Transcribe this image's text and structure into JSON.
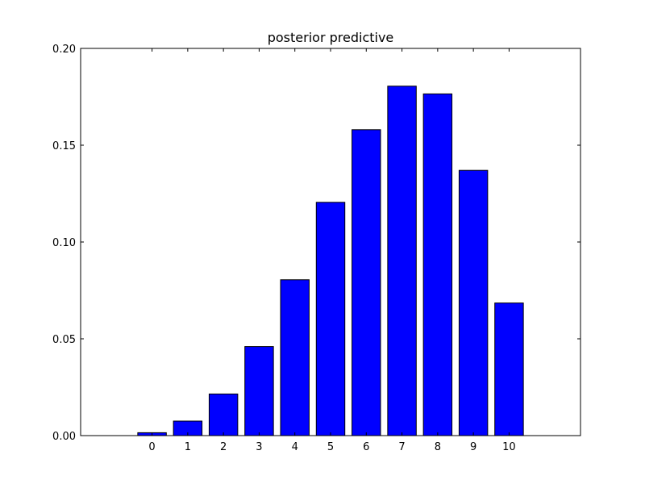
{
  "chart_data": {
    "type": "bar",
    "title": "posterior predictive",
    "xlabel": "",
    "ylabel": "",
    "categories": [
      "0",
      "1",
      "2",
      "3",
      "4",
      "5",
      "6",
      "7",
      "8",
      "9",
      "10"
    ],
    "values": [
      0.0015,
      0.0075,
      0.0215,
      0.046,
      0.0805,
      0.1205,
      0.158,
      0.1805,
      0.1765,
      0.137,
      0.0685
    ],
    "xlim": [
      -2,
      12
    ],
    "ylim": [
      0,
      0.2
    ],
    "yticks": [
      0.0,
      0.05,
      0.1,
      0.15,
      0.2
    ],
    "ytick_labels": [
      "0.00",
      "0.05",
      "0.10",
      "0.15",
      "0.20"
    ],
    "bar_color": "#0000ff",
    "grid": false,
    "legend": false
  }
}
